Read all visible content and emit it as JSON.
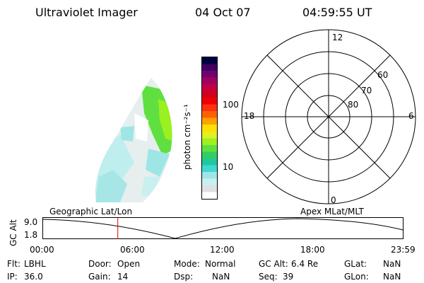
{
  "header": {
    "instrument": "Ultraviolet Imager",
    "date": "04 Oct 07",
    "time": "04:59:55 UT"
  },
  "colorbar": {
    "unit_label": "photon cm⁻²s⁻¹",
    "ticks": [
      "100",
      "10"
    ],
    "colors": [
      "#ffffff",
      "#e0e0e0",
      "#c8f0f0",
      "#9ee6e6",
      "#40d8d0",
      "#20c8a0",
      "#30d060",
      "#60e040",
      "#a0f020",
      "#e0f020",
      "#ffe000",
      "#ffa000",
      "#ff6000",
      "#ff3010",
      "#f00000",
      "#d00020",
      "#c00040",
      "#a00060",
      "#700070",
      "#400060",
      "#000040"
    ]
  },
  "polar_plot": {
    "mlt_labels": {
      "top": "12",
      "left": "18",
      "right": "6",
      "bottom": "0"
    },
    "lat_labels": [
      "60",
      "70",
      "80"
    ]
  },
  "timeline": {
    "left_title": "Geographic Lat/Lon",
    "right_title": "Apex  MLat/MLT",
    "y_axis_label": "GC Alt",
    "y_ticks": [
      "9.0",
      "1.8"
    ],
    "x_ticks": [
      "00:00",
      "06:00",
      "12:00",
      "18:00",
      "23:59"
    ],
    "marker_time": "04:59:55",
    "marker_color": "#dd0000"
  },
  "info": {
    "filter_label": "Flt:",
    "filter_value": "LBHL",
    "ip_label": "IP:",
    "ip_value": "36.0",
    "door_label": "Door:",
    "door_value": "Open",
    "gain_label": "Gain:",
    "gain_value": "14",
    "mode_label": "Mode:",
    "mode_value": "Normal",
    "dsp_label": "Dsp:",
    "dsp_value": "NaN",
    "gcalt_label": "GC Alt:",
    "gcalt_value": "6.4 Re",
    "seq_label": "Seq:",
    "seq_value": "39",
    "glat_label": "GLat:",
    "glat_value": "NaN",
    "glon_label": "GLon:",
    "glon_value": "NaN"
  }
}
